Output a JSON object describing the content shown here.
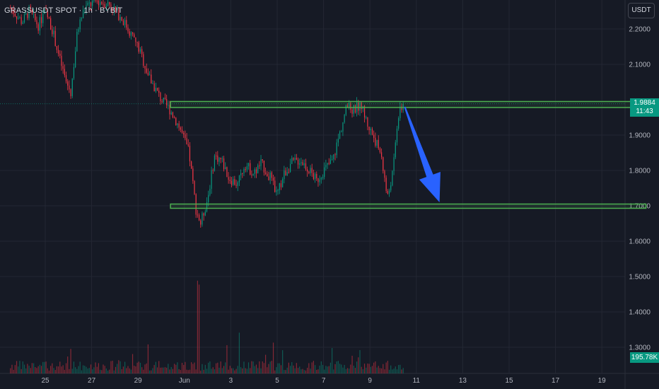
{
  "symbol_title": "GRASSUSDT SPOT · 1h · BYBIT",
  "currency_button": "USDT",
  "current_price": "1.9884",
  "countdown": "11:43",
  "volume_label": "195.78K",
  "colors": {
    "background": "#161a25",
    "up": "#089981",
    "down": "#f23645",
    "zone_border": "#4caf50",
    "arrow": "#2962ff",
    "grid": "#232733",
    "axis_text": "#b2b5be"
  },
  "chart_data": {
    "type": "candlestick",
    "title": "GRASSUSDT SPOT · 1h · BYBIT",
    "y_ticks": [
      "2.2000",
      "2.1000",
      "1.9000",
      "1.8000",
      "1.7000",
      "1.6000",
      "1.5000",
      "1.4000",
      "1.3000"
    ],
    "ylim": [
      1.24,
      2.29
    ],
    "x_ticks": [
      "25",
      "27",
      "29",
      "Jun",
      "3",
      "5",
      "7",
      "9",
      "11",
      "13",
      "15",
      "17",
      "19"
    ],
    "grid": true,
    "price_path": [
      [
        23.5,
        2.26
      ],
      [
        24.0,
        2.22
      ],
      [
        24.3,
        2.25
      ],
      [
        24.7,
        2.21
      ],
      [
        25.0,
        2.25
      ],
      [
        25.3,
        2.2
      ],
      [
        25.6,
        2.12
      ],
      [
        25.9,
        2.05
      ],
      [
        26.1,
        2.02
      ],
      [
        26.4,
        2.2
      ],
      [
        26.7,
        2.26
      ],
      [
        27.2,
        2.28
      ],
      [
        27.8,
        2.27
      ],
      [
        28.4,
        2.22
      ],
      [
        29.0,
        2.15
      ],
      [
        29.5,
        2.06
      ],
      [
        30.0,
        2.0
      ],
      [
        30.4,
        1.97
      ],
      [
        30.8,
        1.92
      ],
      [
        31.2,
        1.85
      ],
      [
        31.5,
        1.69
      ],
      [
        31.7,
        1.65
      ],
      [
        32.0,
        1.72
      ],
      [
        32.3,
        1.84
      ],
      [
        32.6,
        1.83
      ],
      [
        32.9,
        1.78
      ],
      [
        33.3,
        1.76
      ],
      [
        33.6,
        1.82
      ],
      [
        34.0,
        1.79
      ],
      [
        34.3,
        1.82
      ],
      [
        34.7,
        1.78
      ],
      [
        35.0,
        1.73
      ],
      [
        35.3,
        1.79
      ],
      [
        35.6,
        1.82
      ],
      [
        36.0,
        1.83
      ],
      [
        36.4,
        1.8
      ],
      [
        36.7,
        1.77
      ],
      [
        37.0,
        1.8
      ],
      [
        37.4,
        1.83
      ],
      [
        37.8,
        1.93
      ],
      [
        38.0,
        1.98
      ],
      [
        38.3,
        1.97
      ],
      [
        38.6,
        1.99
      ],
      [
        38.9,
        1.93
      ],
      [
        39.2,
        1.89
      ],
      [
        39.5,
        1.84
      ],
      [
        39.75,
        1.72
      ],
      [
        40.0,
        1.8
      ],
      [
        40.2,
        1.95
      ],
      [
        40.45,
        1.99
      ]
    ],
    "volume_path": [
      [
        23.5,
        0.2
      ],
      [
        31.6,
        1.0
      ],
      [
        38.0,
        0.4
      ],
      [
        40.4,
        0.15
      ]
    ],
    "zones": [
      {
        "name": "resistance",
        "from": 1.978,
        "to": 1.995,
        "x_start": 30.4,
        "x_end": 50.9
      },
      {
        "name": "support",
        "from": 1.693,
        "to": 1.705,
        "x_start": 30.4,
        "x_end": 50.9
      }
    ],
    "projection_arrow": {
      "from": [
        40.5,
        1.98
      ],
      "to": [
        42.0,
        1.71
      ]
    },
    "current_price": 1.9884,
    "volume_last": "195.78K"
  }
}
